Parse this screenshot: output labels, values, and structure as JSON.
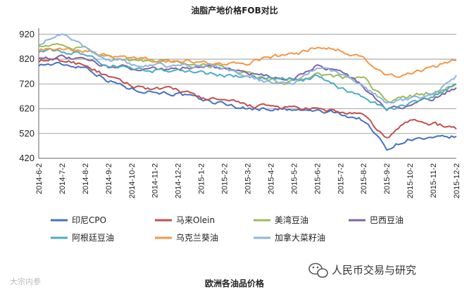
{
  "chart_data": {
    "type": "line",
    "title": "油脂产地价格FOB对比",
    "caption": "欧洲各油品价格",
    "xlabel": "",
    "ylabel": "",
    "ylim": [
      420,
      945
    ],
    "yticks": [
      420,
      520,
      620,
      720,
      820,
      920
    ],
    "x_ticks": [
      "2014-6-2",
      "2014-7-2",
      "2014-8-2",
      "2014-9-2",
      "2014-10-2",
      "2014-11-2",
      "2014-12-2",
      "2015-1-2",
      "2015-2-2",
      "2015-3-2",
      "2015-4-2",
      "2015-5-2",
      "2015-6-2",
      "2015-7-2",
      "2015-8-2",
      "2015-9-2",
      "2015-10-2",
      "2015-11-2",
      "2015-12-2"
    ],
    "grid": true,
    "legend_position": "bottom",
    "series": [
      {
        "name": "印尼CPO",
        "color": "#4472c4",
        "values": [
          800,
          798,
          790,
          735,
          700,
          690,
          680,
          655,
          640,
          620,
          620,
          612,
          610,
          600,
          575,
          460,
          500,
          495,
          508
        ]
      },
      {
        "name": "马来Olein",
        "color": "#c0504d",
        "values": [
          815,
          812,
          800,
          745,
          712,
          700,
          695,
          665,
          652,
          632,
          628,
          622,
          615,
          608,
          590,
          500,
          575,
          560,
          538
        ]
      },
      {
        "name": "美湾豆油",
        "color": "#9bbb59",
        "values": [
          880,
          872,
          860,
          830,
          815,
          810,
          808,
          795,
          790,
          760,
          735,
          725,
          760,
          745,
          740,
          650,
          670,
          685,
          720
        ]
      },
      {
        "name": "巴西豆油",
        "color": "#8064a2",
        "values": [
          830,
          825,
          815,
          790,
          785,
          782,
          780,
          795,
          785,
          765,
          745,
          745,
          795,
          770,
          710,
          615,
          635,
          660,
          705
        ]
      },
      {
        "name": "阿根廷豆油",
        "color": "#4bacc6",
        "values": [
          855,
          850,
          840,
          795,
          780,
          775,
          775,
          765,
          755,
          745,
          740,
          735,
          750,
          700,
          670,
          620,
          640,
          665,
          720
        ]
      },
      {
        "name": "乌克兰葵油",
        "color": "#f79646",
        "values": [
          860,
          855,
          850,
          835,
          820,
          815,
          812,
          808,
          800,
          800,
          830,
          835,
          870,
          860,
          820,
          750,
          760,
          790,
          815
        ]
      },
      {
        "name": "加拿大菜籽油",
        "color": "#8eb4e3",
        "values": [
          885,
          920,
          870,
          820,
          800,
          795,
          790,
          800,
          785,
          745,
          725,
          720,
          790,
          760,
          715,
          640,
          660,
          680,
          755
        ]
      }
    ]
  },
  "watermark": {
    "left_text": "大宗内参",
    "right_text": "人民币交易与研究"
  }
}
